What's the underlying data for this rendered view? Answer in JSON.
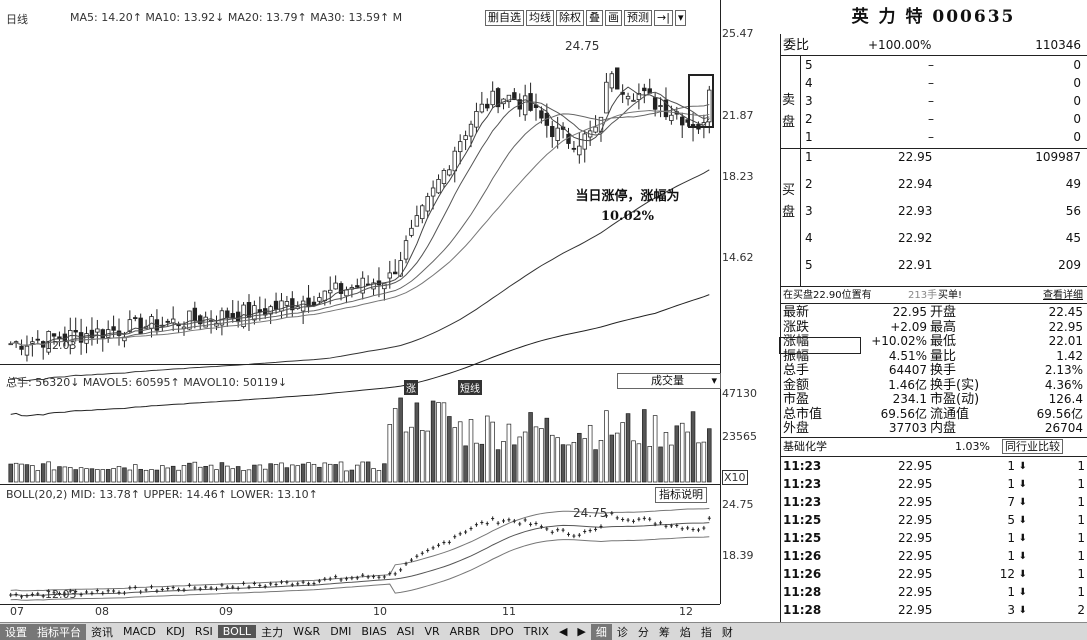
{
  "main": {
    "period_label": "日线",
    "ma_legend": "MA5: 14.20↑ MA10: 13.92↓ MA20: 13.79↑ MA30: 13.59↑ M",
    "toolbar": [
      "删自选",
      "均线",
      "除权",
      "叠",
      "画",
      "预测",
      "→|",
      "▾"
    ],
    "scale": [
      "25.47",
      "21.87",
      "18.23",
      "14.62"
    ],
    "high_label": "24.75",
    "low_label": "12.03",
    "annotation_line1": "当日涨停，涨幅为",
    "annotation_line2": "10.02%",
    "markers": [
      "涨",
      "短线"
    ]
  },
  "volume": {
    "legend": "总手: 56320↓ MAVOL5: 60595↑ MAVOL10: 50119↓",
    "selector": "成交量",
    "scale": [
      "47130",
      "23565"
    ],
    "unit": "X10"
  },
  "boll": {
    "legend": "BOLL(20,2) MID: 13.78↑ UPPER: 14.46↑ LOWER: 13.10↑",
    "button": "指标说明",
    "scale": [
      "24.75",
      "18.39"
    ],
    "high_label": "24.75",
    "low_label": "12.03"
  },
  "x_axis": [
    "07",
    "08",
    "09",
    "10",
    "11",
    "12"
  ],
  "bottom_tabs": [
    "设置",
    "指标平台",
    "资讯",
    "MACD",
    "KDJ",
    "RSI",
    "BOLL",
    "主力",
    "W&R",
    "DMI",
    "BIAS",
    "ASI",
    "VR",
    "ARBR",
    "DPO",
    "TRIX",
    "◀",
    "▶",
    "细",
    "诊",
    "分",
    "筹",
    "焰",
    "指",
    "财"
  ],
  "quote": {
    "title": "英 力 特 000635",
    "weibi_label": "委比",
    "weibi_value": "+100.00%",
    "weibi_diff": "110346",
    "sell_label_1": "卖",
    "sell_label_2": "盘",
    "buy_label_1": "买",
    "buy_label_2": "盘",
    "sell": [
      {
        "lvl": "5",
        "price": "–",
        "vol": "0"
      },
      {
        "lvl": "4",
        "price": "–",
        "vol": "0"
      },
      {
        "lvl": "3",
        "price": "–",
        "vol": "0"
      },
      {
        "lvl": "2",
        "price": "–",
        "vol": "0"
      },
      {
        "lvl": "1",
        "price": "–",
        "vol": "0"
      }
    ],
    "buy": [
      {
        "lvl": "1",
        "price": "22.95",
        "vol": "109987"
      },
      {
        "lvl": "2",
        "price": "22.94",
        "vol": "49"
      },
      {
        "lvl": "3",
        "price": "22.93",
        "vol": "56"
      },
      {
        "lvl": "4",
        "price": "22.92",
        "vol": "45"
      },
      {
        "lvl": "5",
        "price": "22.91",
        "vol": "209"
      }
    ],
    "queue_text": "在买盘22.90位置有",
    "queue_count": "213手",
    "queue_action": "买单!",
    "queue_link": "查看详细",
    "stats": [
      {
        "l1": "最新",
        "v1": "22.95",
        "l2": "开盘",
        "v2": "22.45"
      },
      {
        "l1": "涨跌",
        "v1": "+2.09",
        "l2": "最高",
        "v2": "22.95"
      },
      {
        "l1": "涨幅",
        "v1": "+10.02%",
        "l2": "最低",
        "v2": "22.01"
      },
      {
        "l1": "振幅",
        "v1": "4.51%",
        "l2": "量比",
        "v2": "1.42"
      },
      {
        "l1": "总手",
        "v1": "64407",
        "l2": "换手",
        "v2": "2.13%"
      },
      {
        "l1": "金额",
        "v1": "1.46亿",
        "l2": "换手(实)",
        "v2": "4.36%"
      },
      {
        "l1": "市盈",
        "v1": "234.1",
        "l2": "市盈(动)",
        "v2": "126.4"
      },
      {
        "l1": "总市值",
        "v1": "69.56亿",
        "l2": "流通值",
        "v2": "69.56亿"
      },
      {
        "l1": "外盘",
        "v1": "37703",
        "l2": "内盘",
        "v2": "26704"
      }
    ],
    "sector_label": "基础化学",
    "sector_pct": "1.03%",
    "sector_btn": "同行业比较",
    "ticks": [
      {
        "t": "11:23",
        "p": "22.95",
        "v": "1",
        "n": "1"
      },
      {
        "t": "11:23",
        "p": "22.95",
        "v": "1",
        "n": "1"
      },
      {
        "t": "11:23",
        "p": "22.95",
        "v": "7",
        "n": "1"
      },
      {
        "t": "11:25",
        "p": "22.95",
        "v": "5",
        "n": "1"
      },
      {
        "t": "11:25",
        "p": "22.95",
        "v": "1",
        "n": "1"
      },
      {
        "t": "11:26",
        "p": "22.95",
        "v": "1",
        "n": "1"
      },
      {
        "t": "11:26",
        "p": "22.95",
        "v": "12",
        "n": "1"
      },
      {
        "t": "11:28",
        "p": "22.95",
        "v": "1",
        "n": "1"
      },
      {
        "t": "11:28",
        "p": "22.95",
        "v": "3",
        "n": "2"
      }
    ]
  },
  "colors": {
    "up": "#333333",
    "down": "#111111",
    "grid": "#222222",
    "bg": "#ffffff"
  }
}
